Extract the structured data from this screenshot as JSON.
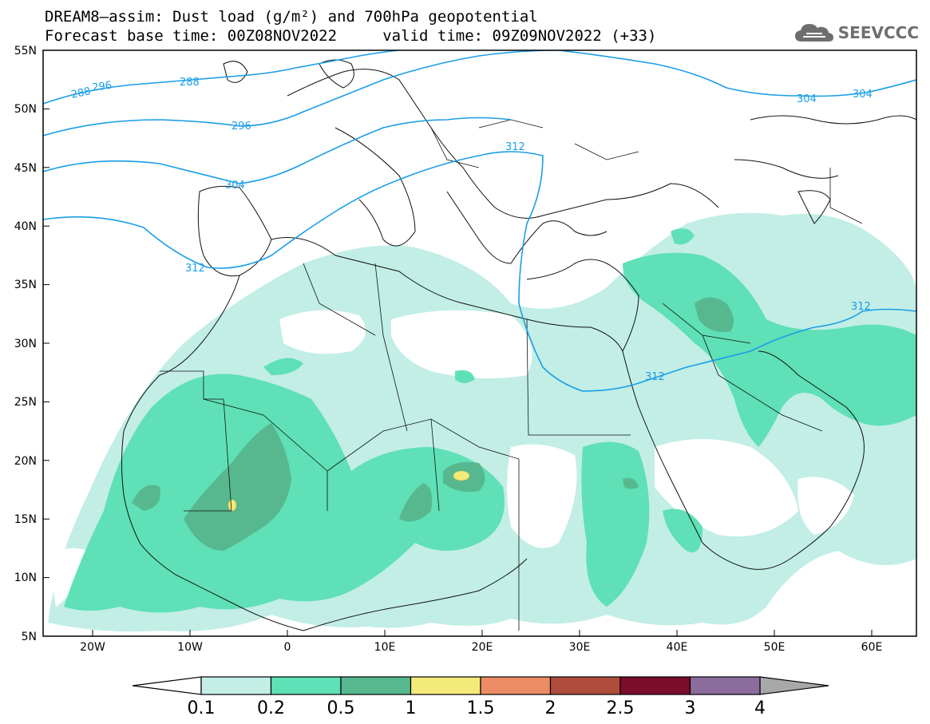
{
  "title_line1": "DREAM8–assim: Dust load (g/m²) and 700hPa geopotential",
  "title_line2": "Forecast base time: 00Z08NOV2022     valid time: 09Z09NOV2022 (+33)",
  "logo_text": "SEEVCCC",
  "lat_ticks": [
    "55N",
    "50N",
    "45N",
    "40N",
    "35N",
    "30N",
    "25N",
    "20N",
    "15N",
    "10N",
    "5N"
  ],
  "lon_ticks": [
    "20W",
    "10W",
    "0",
    "10E",
    "20E",
    "30E",
    "40E",
    "50E",
    "60E"
  ],
  "colorbar": {
    "labels": [
      "0.1",
      "0.2",
      "0.5",
      "1",
      "1.5",
      "2",
      "2.5",
      "3",
      "4"
    ],
    "colors": [
      "#c2eee6",
      "#5fe0b6",
      "#57b890",
      "#f4ea7a",
      "#ec8c64",
      "#b04c3c",
      "#7c0c2c",
      "#8c6c9c"
    ],
    "low_arrow_color": "#ffffff",
    "high_arrow_color": "#a8a8a8"
  },
  "contour_labels": [
    "288",
    "288",
    "296",
    "296",
    "304",
    "304",
    "304",
    "312",
    "312",
    "312",
    "312"
  ],
  "contour_color": "#1a9ee8"
}
